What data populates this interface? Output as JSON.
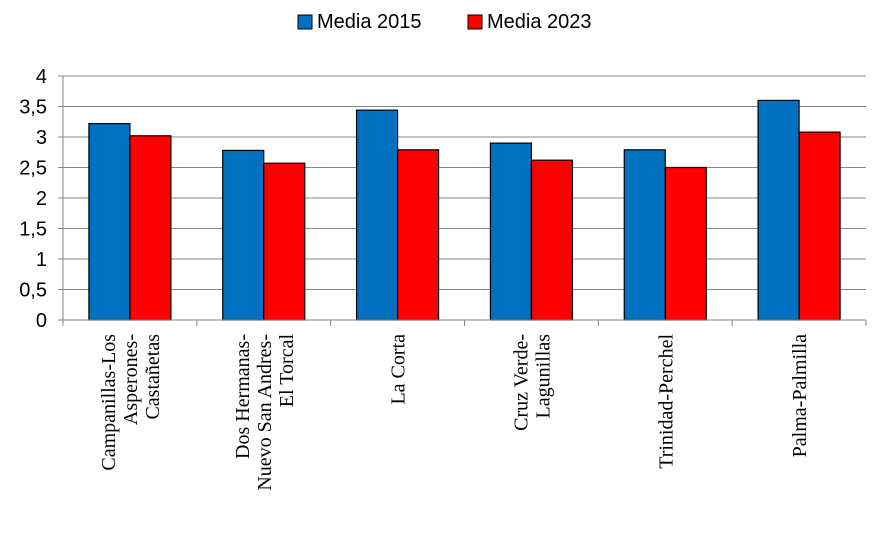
{
  "chart_data": {
    "type": "bar",
    "title": "",
    "xlabel": "",
    "ylabel": "",
    "ylim": [
      0,
      4
    ],
    "yticks": [
      "0",
      "0,5",
      "1",
      "1,5",
      "2",
      "2,5",
      "3",
      "3,5",
      "4"
    ],
    "grid": true,
    "legend_position": "top-center",
    "categories": [
      [
        "Campanillas-Los",
        "Asperones-",
        "Castañetas"
      ],
      [
        "Dos Hermanas-",
        "Nuevo San Andres-",
        "El Torcal"
      ],
      [
        "La Corta"
      ],
      [
        "Cruz  Verde-",
        "Lagunillas"
      ],
      [
        "Trinidad-Perchel"
      ],
      [
        "Palma-Palmilla"
      ]
    ],
    "series": [
      {
        "name": "Media 2015",
        "color": "#0070C0",
        "values": [
          3.22,
          2.78,
          3.44,
          2.9,
          2.79,
          3.6
        ]
      },
      {
        "name": "Media 2023",
        "color": "#FF0000",
        "values": [
          3.02,
          2.57,
          2.79,
          2.62,
          2.5,
          3.08
        ]
      }
    ]
  }
}
